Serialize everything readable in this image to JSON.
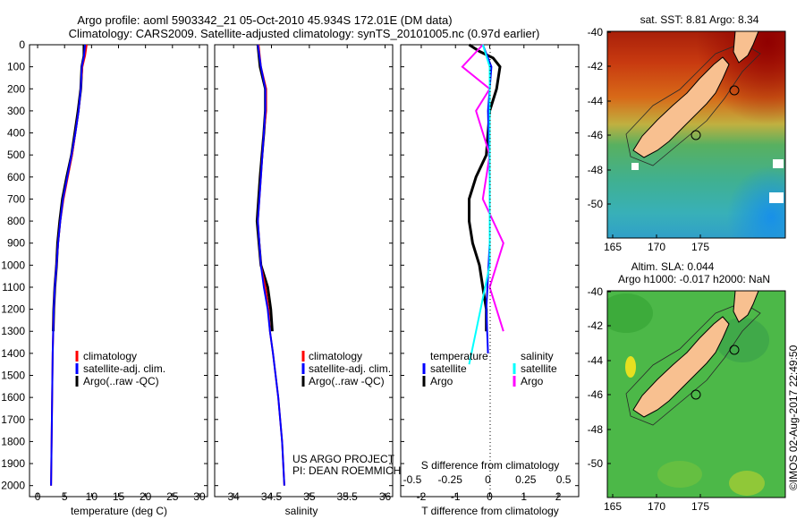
{
  "header": {
    "line1": "Argo profile: aoml 5903342_21 05-Oct-2010 45.934S 172.01E (DM data)",
    "line2": "Climatology: CARS2009. Satellite-adjusted climatology: synTS_20101005.nc (0.97d earlier)"
  },
  "colors": {
    "clim": "#ff0000",
    "sat": "#0000ff",
    "argo": "#000000",
    "sal_sat": "#00ffff",
    "sal_argo": "#ff00ff"
  },
  "chart_data": [
    {
      "type": "line",
      "id": "temperature",
      "xlabel": "temperature (deg C)",
      "xlim": [
        -1.5,
        31.5
      ],
      "xticks": [
        0,
        5,
        10,
        15,
        20,
        25,
        30
      ],
      "ylim": [
        0,
        2050
      ],
      "yticks": [
        0,
        100,
        200,
        300,
        400,
        500,
        600,
        700,
        800,
        900,
        1000,
        1100,
        1200,
        1300,
        1400,
        1500,
        1600,
        1700,
        1800,
        1900,
        2000
      ],
      "legend": [
        "climatology",
        "satellite-adj. clim.",
        "Argo(..raw -QC)"
      ],
      "series": [
        {
          "name": "climatology",
          "depth": [
            0,
            50,
            100,
            200,
            300,
            400,
            500,
            600,
            700,
            800,
            900,
            1000,
            1100,
            1200,
            1400,
            1600,
            1800,
            2000
          ],
          "values": [
            9.1,
            8.8,
            8.3,
            8.0,
            7.6,
            7.0,
            6.4,
            5.6,
            4.8,
            4.2,
            3.8,
            3.5,
            3.2,
            3.0,
            2.8,
            2.7,
            2.6,
            2.5
          ]
        },
        {
          "name": "satellite-adj. clim.",
          "depth": [
            0,
            50,
            100,
            200,
            300,
            400,
            500,
            600,
            700,
            800,
            900,
            1000,
            1100,
            1200,
            1400,
            1600,
            1800,
            2000
          ],
          "values": [
            8.8,
            8.6,
            8.2,
            8.0,
            7.6,
            7.0,
            6.3,
            5.5,
            4.7,
            4.2,
            3.8,
            3.5,
            3.2,
            3.0,
            2.8,
            2.7,
            2.6,
            2.5
          ]
        },
        {
          "name": "Argo(..raw -QC)",
          "depth": [
            0,
            50,
            100,
            200,
            300,
            400,
            500,
            600,
            700,
            800,
            900,
            1000,
            1100,
            1200,
            1300
          ],
          "values": [
            8.6,
            8.6,
            8.2,
            8.0,
            7.5,
            6.9,
            6.3,
            5.4,
            4.6,
            4.1,
            3.7,
            3.5,
            3.2,
            3.0,
            2.9
          ]
        }
      ]
    },
    {
      "type": "line",
      "id": "salinity",
      "xlabel": "salinity",
      "xlim": [
        33.75,
        36.1
      ],
      "xticks": [
        34,
        34.5,
        35,
        35.5,
        36
      ],
      "ylim": [
        0,
        2050
      ],
      "legend": [
        "climatology",
        "satellite-adj. clim.",
        "Argo(..raw -QC)"
      ],
      "annotation": [
        "US ARGO PROJECT",
        "PI: DEAN ROEMMICH"
      ],
      "series": [
        {
          "name": "climatology",
          "depth": [
            0,
            100,
            200,
            300,
            400,
            600,
            800,
            1000,
            1100,
            1200,
            1300,
            1400,
            1600,
            1800,
            2000
          ],
          "values": [
            34.33,
            34.36,
            34.43,
            34.43,
            34.4,
            34.36,
            34.32,
            34.36,
            34.42,
            34.46,
            34.48,
            34.52,
            34.59,
            34.64,
            34.67
          ]
        },
        {
          "name": "satellite-adj. clim.",
          "depth": [
            0,
            100,
            200,
            300,
            400,
            600,
            800,
            1000,
            1100,
            1200,
            1300,
            1400,
            1600,
            1800,
            2000
          ],
          "values": [
            34.32,
            34.36,
            34.42,
            34.42,
            34.4,
            34.36,
            34.32,
            34.36,
            34.4,
            34.45,
            34.48,
            34.52,
            34.59,
            34.64,
            34.67
          ]
        },
        {
          "name": "Argo(..raw -QC)",
          "depth": [
            0,
            100,
            200,
            300,
            400,
            600,
            800,
            1000,
            1100,
            1200,
            1300
          ],
          "values": [
            34.32,
            34.35,
            34.42,
            34.42,
            34.4,
            34.35,
            34.31,
            34.36,
            34.45,
            34.49,
            34.51
          ]
        }
      ]
    },
    {
      "type": "line",
      "id": "differences",
      "xlabel": "T difference from climatology",
      "xlim": [
        -2.6,
        2.6
      ],
      "xticks": [
        -2,
        -1,
        0,
        1,
        2
      ],
      "s_axis_label": "S difference from climatology",
      "s_ticks": [
        "-0.5",
        "-0.25",
        "0",
        "0.25",
        "0.5"
      ],
      "legend_left_title": "temperature",
      "legend_right_title": "salinity",
      "legend_left": [
        "satellite",
        "Argo"
      ],
      "legend_right": [
        "satellite",
        "Argo"
      ],
      "ylim": [
        0,
        2050
      ],
      "series": [
        {
          "name": "temperature satellite",
          "depth": [
            0,
            100,
            300,
            600,
            900,
            1200,
            1400
          ],
          "values": [
            -0.2,
            0.05,
            -0.05,
            0.0,
            0.0,
            -0.1,
            -0.05
          ]
        },
        {
          "name": "temperature Argo",
          "depth": [
            0,
            30,
            60,
            100,
            200,
            300,
            500,
            600,
            700,
            800,
            900,
            1000,
            1100,
            1200,
            1300
          ],
          "values": [
            -0.6,
            -0.3,
            0.1,
            0.3,
            0.2,
            0.0,
            -0.1,
            -0.4,
            -0.6,
            -0.6,
            -0.5,
            -0.3,
            -0.2,
            -0.1,
            -0.1
          ]
        },
        {
          "name": "salinity satellite",
          "depth": [
            0,
            100,
            200,
            400,
            700,
            1000,
            1300,
            1450
          ],
          "values": [
            -0.05,
            0.0,
            0.0,
            0.0,
            0.0,
            0.0,
            -0.1,
            -0.15
          ]
        },
        {
          "name": "salinity Argo",
          "depth": [
            0,
            100,
            200,
            300,
            500,
            700,
            900,
            1100,
            1300
          ],
          "values": [
            -0.05,
            -0.2,
            0.0,
            -0.1,
            0.0,
            -0.05,
            0.1,
            0.0,
            0.1
          ]
        }
      ]
    }
  ],
  "maps": {
    "top": {
      "title": "sat. SST: 8.81 Argo: 8.34",
      "yticks": [
        "-40",
        "-42",
        "-44",
        "-46",
        "-48",
        "-50"
      ],
      "xticks": [
        "165",
        "170",
        "175"
      ]
    },
    "bottom": {
      "title1": "Altim. SLA: 0.044",
      "title2": "Argo h1000: -0.017 h2000: NaN",
      "yticks": [
        "-40",
        "-42",
        "-44",
        "-46",
        "-48",
        "-50"
      ],
      "xticks": [
        "165",
        "170",
        "175"
      ]
    }
  },
  "footer": {
    "credit": "©IMOS 02-Aug-2017 22:49:50"
  }
}
